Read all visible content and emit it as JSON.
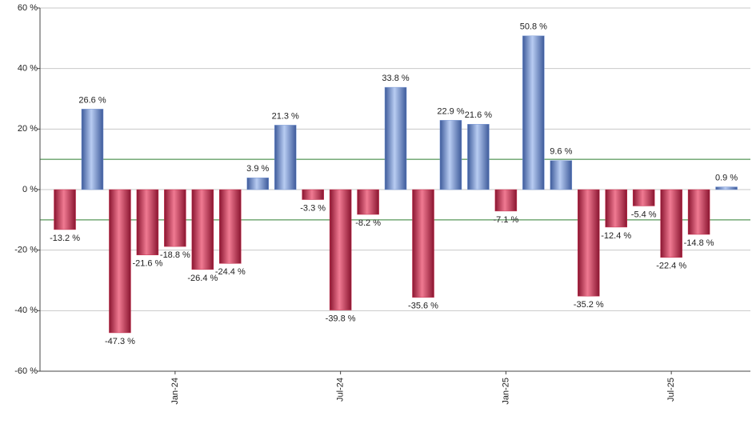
{
  "chart_data": {
    "type": "bar",
    "categories": [
      null,
      null,
      null,
      null,
      "Jan-24",
      null,
      null,
      null,
      null,
      null,
      "Jul-24",
      null,
      null,
      null,
      null,
      null,
      "Jan-25",
      null,
      null,
      null,
      null,
      null,
      "Jul-25",
      null,
      null
    ],
    "values": [
      -13.2,
      26.6,
      -47.3,
      -21.6,
      -18.8,
      -26.4,
      -24.4,
      3.9,
      21.3,
      -3.3,
      -39.8,
      -8.2,
      33.8,
      -35.6,
      22.9,
      21.6,
      -7.1,
      50.8,
      9.6,
      -35.2,
      -12.4,
      -5.4,
      -22.4,
      -14.8,
      0.9
    ],
    "value_labels": [
      "-13.2 %",
      "26.6 %",
      "-47.3 %",
      "-21.6 %",
      "-18.8 %",
      "-26.4 %",
      "-24.4 %",
      "3.9 %",
      "21.3 %",
      "-3.3 %",
      "-39.8 %",
      "-8.2 %",
      "33.8 %",
      "-35.6 %",
      "22.9 %",
      "21.6 %",
      "-7.1 %",
      "50.8 %",
      "9.6 %",
      "-35.2 %",
      "-12.4 %",
      "-5.4 %",
      "-22.4 %",
      "-14.8 %",
      "0.9 %"
    ],
    "colors": {
      "positive": "#7b9ad6",
      "negative": "#c8304f"
    },
    "ylim": [
      -60,
      60
    ],
    "yticks": [
      {
        "value": -60,
        "label": "-60 %"
      },
      {
        "value": -40,
        "label": "-40 %"
      },
      {
        "value": -20,
        "label": "-20 %"
      },
      {
        "value": 0,
        "label": "0 %"
      },
      {
        "value": 20,
        "label": "20 %"
      },
      {
        "value": 40,
        "label": "40 %"
      },
      {
        "value": 60,
        "label": "60 %"
      }
    ],
    "reference_lines": [
      10,
      -10
    ],
    "reference_color": "#2e7d32",
    "grid": true
  }
}
